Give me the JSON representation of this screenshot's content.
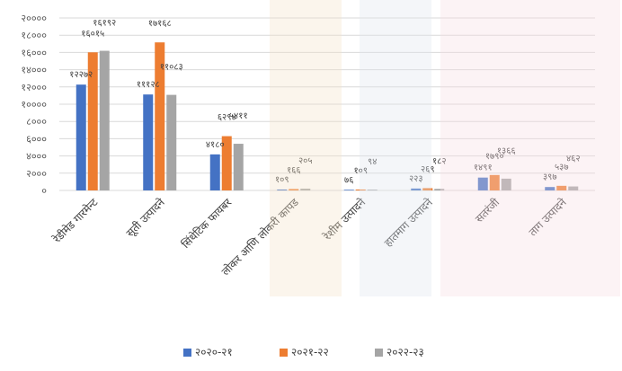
{
  "chart_data": {
    "type": "bar",
    "title": "",
    "xlabel": "",
    "ylabel": "",
    "ylim": [
      0,
      20000
    ],
    "grid": true,
    "legend_position": "bottom",
    "y_tick_labels": [
      "०",
      "२०००",
      "४०००",
      "६०००",
      "८०००",
      "१००००",
      "१२०००",
      "१४०००",
      "१६०००",
      "१८०००",
      "२००००"
    ],
    "categories": [
      "रेडीमेड गारमेन्ट",
      "सूती उत्पादने",
      "सिंथेटिक फायबर",
      "लोकर आणि लोकरी कापड",
      "रेशीम उत्पादने",
      "हातमाग उत्पादने",
      "सतरंजी",
      "ताग उत्पादने"
    ],
    "series": [
      {
        "name": "२०२०-२१",
        "color": "#4472C4",
        "values": [
          12272,
          11128,
          4180,
          109,
          76,
          223,
          1491,
          397
        ],
        "labels": [
          "१२२७२",
          "१११२८",
          "४१८०",
          "१०९",
          "७६",
          "२२३",
          "१४९१",
          "३९७"
        ]
      },
      {
        "name": "२०२१-२२",
        "color": "#ED7D31",
        "values": [
          16015,
          17168,
          6294,
          166,
          109,
          269,
          1790,
          537
        ],
        "labels": [
          "१६०१५",
          "१७१६८",
          "६२९४",
          "१६६",
          "१०९",
          "२६९",
          "१७९०",
          "५३७"
        ]
      },
      {
        "name": "२०२२-२३",
        "color": "#A5A5A5",
        "values": [
          16192,
          11083,
          5411,
          205,
          94,
          182,
          1366,
          462
        ],
        "labels": [
          "१६१९२",
          "११०८३",
          "५४११",
          "२०५",
          "९४",
          "१८२",
          "१३६६",
          "४६२"
        ]
      }
    ]
  }
}
